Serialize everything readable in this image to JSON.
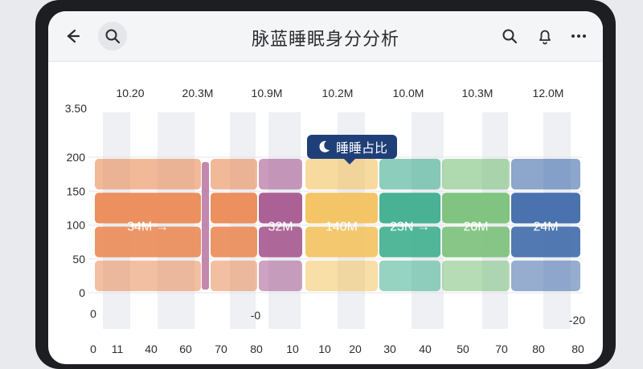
{
  "app": {
    "title": "脉蓝睡眠身分分析"
  },
  "tooltip": {
    "label": "睡睡占比"
  },
  "chart_data": {
    "type": "bar",
    "ylim": [
      0,
      200
    ],
    "y_ticks": [
      "0",
      "50",
      "100",
      "150",
      "200"
    ],
    "y_top_label": "3.50",
    "x_ticks": [
      "0",
      "11",
      "40",
      "60",
      "70",
      "80",
      "10",
      "10",
      "20",
      "30",
      "40",
      "50",
      "70",
      "80",
      "80"
    ],
    "top_labels": [
      "10.20",
      "20.3M",
      "10.9M",
      "10.2M",
      "10.0M",
      "10.3M",
      "12.0M"
    ],
    "neg_labels": [
      "0",
      "-0",
      "-20"
    ],
    "bar_labels": [
      "34M →",
      "32M",
      "140M",
      "23N →",
      "20M",
      "24M"
    ],
    "columns": [
      {
        "label": "34M →",
        "values": [
          50,
          50,
          50,
          50
        ],
        "color": "#ea8a55"
      },
      {
        "label": "",
        "values": [
          50,
          50,
          50,
          50
        ],
        "color": "#ea8a55"
      },
      {
        "label": "32M",
        "values": [
          50,
          50,
          50,
          50
        ],
        "color": "#a6588f"
      },
      {
        "label": "140M",
        "values": [
          50,
          50,
          50,
          50
        ],
        "color": "#f2c25e"
      },
      {
        "label": "23N →",
        "values": [
          50,
          50,
          50,
          50
        ],
        "color": "#3fae8e"
      },
      {
        "label": "20M",
        "values": [
          50,
          50,
          50,
          50
        ],
        "color": "#7ac07a"
      },
      {
        "label": "24M",
        "values": [
          50,
          50,
          50,
          50
        ],
        "color": "#3f6aaa"
      }
    ],
    "grid": true
  }
}
